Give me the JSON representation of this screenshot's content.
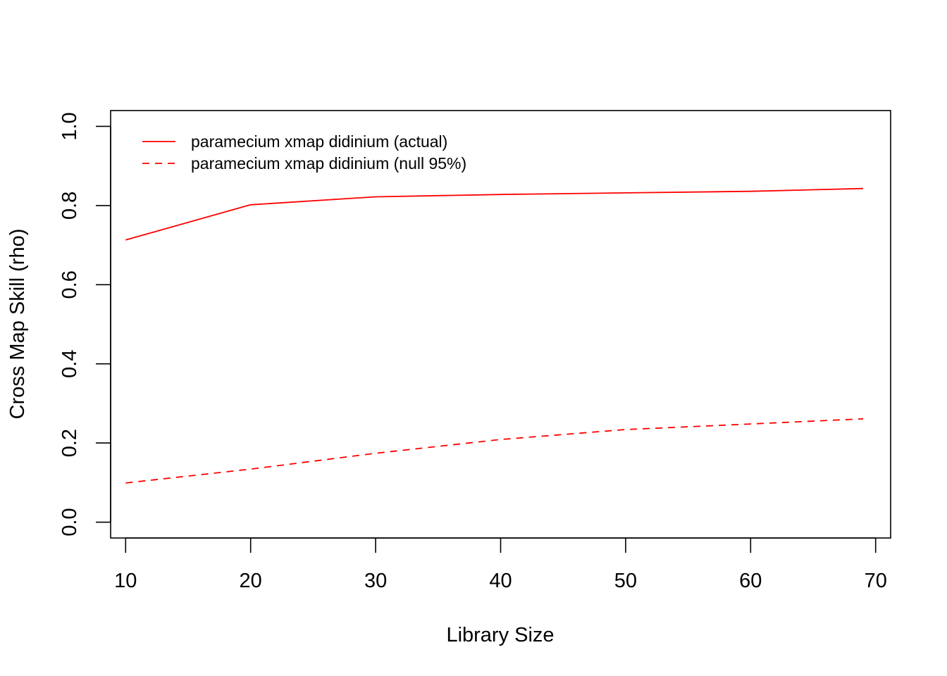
{
  "chart_data": {
    "type": "line",
    "title": "",
    "xlabel": "Library Size",
    "ylabel": "Cross Map Skill (rho)",
    "xlim": [
      8.8,
      71.2
    ],
    "ylim": [
      -0.04,
      1.04
    ],
    "xticks": [
      10,
      20,
      30,
      40,
      50,
      60,
      70
    ],
    "yticks": [
      0.0,
      0.2,
      0.4,
      0.6,
      0.8,
      1.0
    ],
    "xtick_labels": [
      "10",
      "20",
      "30",
      "40",
      "50",
      "60",
      "70"
    ],
    "ytick_labels": [
      "0.0",
      "0.2",
      "0.4",
      "0.6",
      "0.8",
      "1.0"
    ],
    "grid": false,
    "legend_position": "top-left",
    "x": [
      10,
      20,
      30,
      40,
      50,
      60,
      69
    ],
    "series": [
      {
        "name": "paramecium xmap didinium (actual)",
        "color": "#ff0000",
        "style": "solid",
        "values": [
          0.713,
          0.802,
          0.822,
          0.828,
          0.832,
          0.836,
          0.843
        ]
      },
      {
        "name": "paramecium xmap didinium (null 95%)",
        "color": "#ff0000",
        "style": "dashed",
        "values": [
          0.099,
          0.134,
          0.174,
          0.209,
          0.234,
          0.248,
          0.261
        ]
      }
    ]
  }
}
